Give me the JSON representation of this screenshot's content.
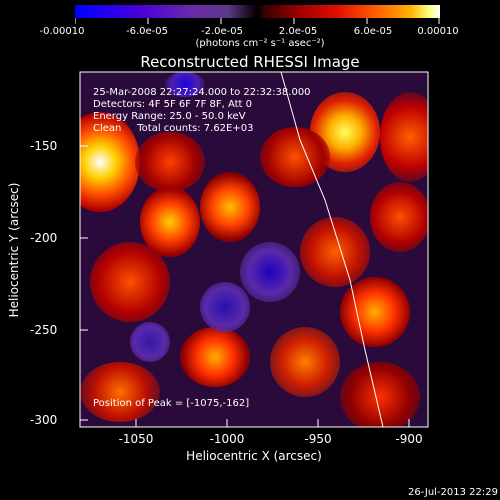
{
  "colorbar": {
    "ticks": [
      "-0.00010",
      "-6.0e-05",
      "-2.0e-05",
      "2.0e-05",
      "6.0e-05",
      "0.00010"
    ],
    "units": "(photons cm⁻² s⁻¹ asec⁻²)"
  },
  "title": "Reconstructed RHESSI Image",
  "info": {
    "time": "25-Mar-2008 22:27:24.000 to 22:32:38.000",
    "detectors": "Detectors: 4F 5F 6F 7F 8F, Att 0",
    "energy": "Energy Range: 25.0 - 50.0 keV",
    "clean": "Clean     Total counts: 7.62E+03"
  },
  "peak": "Position of Peak = [-1075,-162]",
  "axes": {
    "xlabel": "Heliocentric X (arcsec)",
    "ylabel": "Heliocentric Y (arcsec)",
    "xticks": [
      "-1050",
      "-1000",
      "-950",
      "-900"
    ],
    "yticks": [
      "-150",
      "-200",
      "-250",
      "-300"
    ]
  },
  "timestamp": "26-Jul-2013 22:29"
}
